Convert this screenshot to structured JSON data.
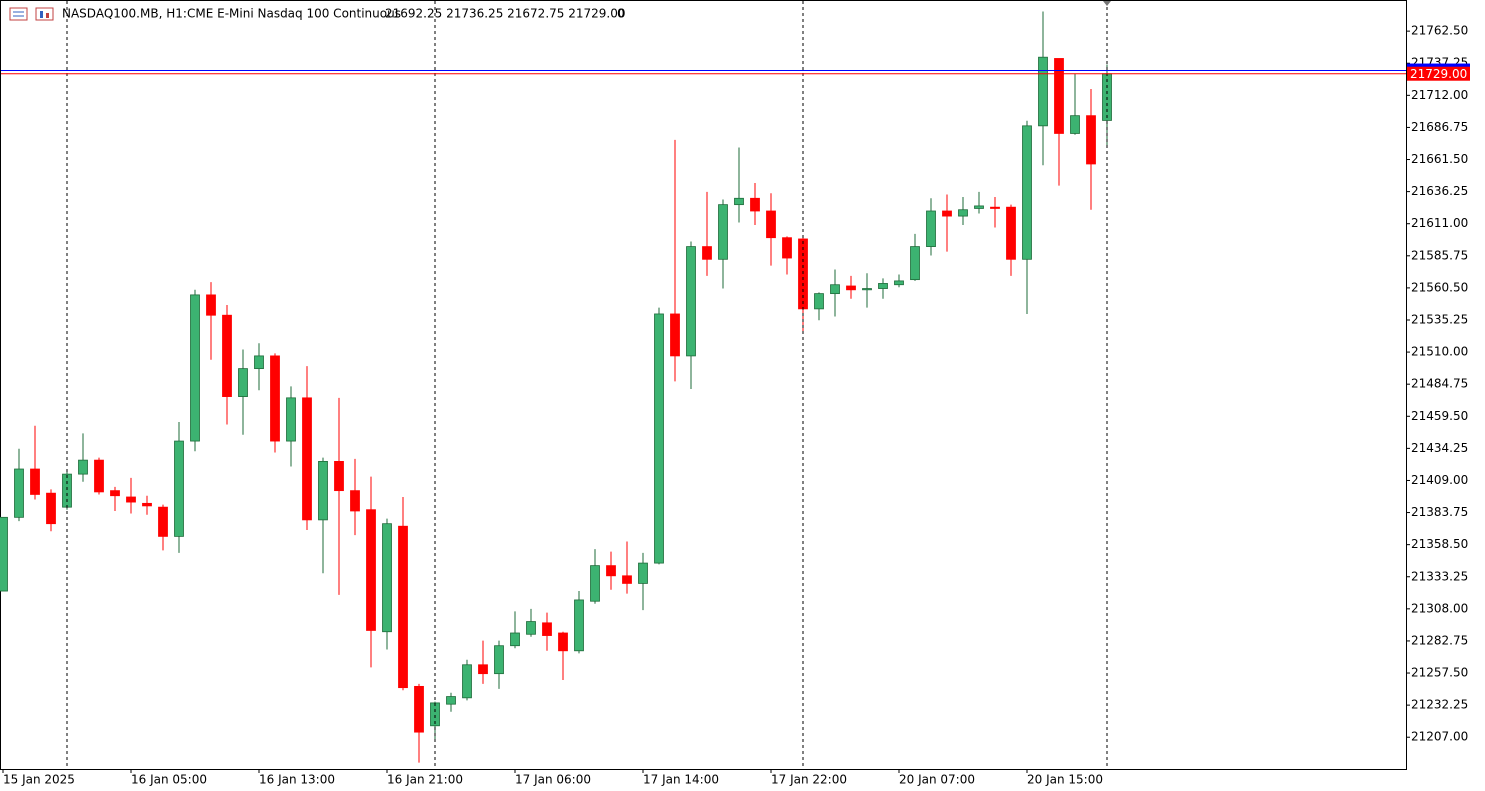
{
  "header": {
    "symbol": "NASDAQ100.MB, H1:",
    "description": "CME E-Mini Nasdaq 100 Continuous",
    "ohlc": "21692.25 21736.25 21672.75 21729.00",
    "volume": "0"
  },
  "chart_data": {
    "type": "candlestick",
    "up_color": "#3cb371",
    "down_color": "#ff0000",
    "ylim": [
      21182,
      21787
    ],
    "yticks": [
      {
        "value": 21207,
        "label": "21207.00"
      },
      {
        "value": 21232.25,
        "label": "21232.25"
      },
      {
        "value": 21257.5,
        "label": "21257.50"
      },
      {
        "value": 21282.75,
        "label": "21282.75"
      },
      {
        "value": 21308,
        "label": "21308.00"
      },
      {
        "value": 21333.25,
        "label": "21333.25"
      },
      {
        "value": 21358.5,
        "label": "21358.50"
      },
      {
        "value": 21383.75,
        "label": "21383.75"
      },
      {
        "value": 21409,
        "label": "21409.00"
      },
      {
        "value": 21434.25,
        "label": "21434.25"
      },
      {
        "value": 21459.5,
        "label": "21459.50"
      },
      {
        "value": 21484.75,
        "label": "21484.75"
      },
      {
        "value": 21510,
        "label": "21510.00"
      },
      {
        "value": 21535.25,
        "label": "21535.25"
      },
      {
        "value": 21560.5,
        "label": "21560.50"
      },
      {
        "value": 21585.75,
        "label": "21585.75"
      },
      {
        "value": 21611,
        "label": "21611.00"
      },
      {
        "value": 21636.25,
        "label": "21636.25"
      },
      {
        "value": 21661.5,
        "label": "21661.50"
      },
      {
        "value": 21686.75,
        "label": "21686.75"
      },
      {
        "value": 21712,
        "label": "21712.00"
      },
      {
        "value": 21737.25,
        "label": "21737.25"
      },
      {
        "value": 21762.5,
        "label": "21762.50"
      }
    ],
    "categories": [
      "15 Jan 2025",
      null,
      null,
      null,
      null,
      null,
      null,
      null,
      "16 Jan 05:00",
      null,
      null,
      null,
      null,
      null,
      null,
      null,
      "16 Jan 13:00",
      null,
      null,
      null,
      null,
      null,
      null,
      null,
      "16 Jan 21:00",
      null,
      null,
      null,
      null,
      null,
      null,
      null,
      "17 Jan 06:00",
      null,
      null,
      null,
      null,
      null,
      null,
      null,
      "17 Jan 14:00",
      null,
      null,
      null,
      null,
      null,
      null,
      null,
      "17 Jan 22:00",
      null,
      null,
      null,
      null,
      null,
      null,
      null,
      "20 Jan 07:00",
      null,
      null,
      null,
      null,
      null,
      null,
      null,
      "20 Jan 15:00",
      null,
      null,
      null,
      null,
      null
    ],
    "open": [
      21322,
      21380,
      21418,
      21399,
      21388,
      21414,
      21425,
      21401,
      21396,
      21391,
      21388,
      21365,
      21440,
      21555,
      21539,
      21475,
      21497,
      21507,
      21440,
      21474,
      21378,
      21424,
      21401,
      21386,
      21290,
      21373,
      21247,
      21216,
      21233,
      21238,
      21264,
      21257,
      21279,
      21288,
      21297,
      21289,
      21275,
      21314,
      21342,
      21334,
      21328,
      21344,
      21540,
      21507,
      21593,
      21583,
      21626,
      21631,
      21621,
      21600,
      21599,
      21544,
      21556,
      21562,
      21559,
      21560,
      21563,
      21567,
      21593,
      21621,
      21617,
      21623,
      21624,
      21624,
      21583,
      21688,
      21741,
      21682,
      21696,
      21692.25
    ],
    "high": [
      21380,
      21434,
      21452,
      21402,
      21416,
      21446,
      21427,
      21404,
      21411,
      21397,
      21390,
      21455,
      21559,
      21565,
      21547,
      21512,
      21517,
      21509,
      21483,
      21499,
      21427,
      21474,
      21426,
      21412,
      21379,
      21396,
      21249,
      21235,
      21242,
      21268,
      21283,
      21283,
      21306,
      21308,
      21305,
      21290,
      21322,
      21355,
      21353,
      21361,
      21352,
      21545,
      21677,
      21597,
      21636,
      21630,
      21671,
      21643,
      21635,
      21601,
      21600,
      21557,
      21575,
      21570,
      21572,
      21568,
      21571,
      21603,
      21631,
      21634,
      21632,
      21636,
      21632,
      21626,
      21692,
      21778,
      21741,
      21729,
      21717,
      21736.25
    ],
    "low": [
      21322,
      21377,
      21394,
      21369,
      21386,
      21408,
      21398,
      21385,
      21383,
      21382,
      21354,
      21352,
      21432,
      21504,
      21453,
      21445,
      21480,
      21431,
      21420,
      21370,
      21336,
      21319,
      21366,
      21262,
      21276,
      21244,
      21187,
      21204,
      21227,
      21236,
      21249,
      21245,
      21277,
      21286,
      21275,
      21252,
      21273,
      21312,
      21323,
      21320,
      21307,
      21343,
      21487,
      21481,
      21570,
      21560,
      21612,
      21610,
      21578,
      21571,
      21525,
      21535,
      21538,
      21552,
      21545,
      21552,
      21561,
      21566,
      21586,
      21589,
      21610,
      21619,
      21608,
      21570,
      21540,
      21657,
      21641,
      21681,
      21622,
      21672.75
    ],
    "close": [
      21380,
      21418,
      21398,
      21375,
      21414,
      21425,
      21400,
      21397,
      21392,
      21389,
      21365,
      21440,
      21555,
      21539,
      21475,
      21497,
      21507,
      21440,
      21474,
      21378,
      21424,
      21401,
      21385,
      21291,
      21375,
      21246,
      21211,
      21234,
      21239,
      21264,
      21257,
      21279,
      21289,
      21298,
      21287,
      21275,
      21315,
      21342,
      21334,
      21328,
      21344,
      21540,
      21507,
      21593,
      21583,
      21626,
      21631,
      21621,
      21600,
      21584,
      21544,
      21556,
      21563,
      21559,
      21560,
      21564,
      21566,
      21593,
      21621,
      21617,
      21622,
      21625,
      21623,
      21583,
      21688,
      21742,
      21682,
      21696,
      21658,
      21729
    ],
    "price_lines": [
      {
        "value": 21731.5,
        "color": "#0000ff"
      },
      {
        "value": 21729,
        "label": "21729.00",
        "color": "#ff0000"
      }
    ]
  }
}
